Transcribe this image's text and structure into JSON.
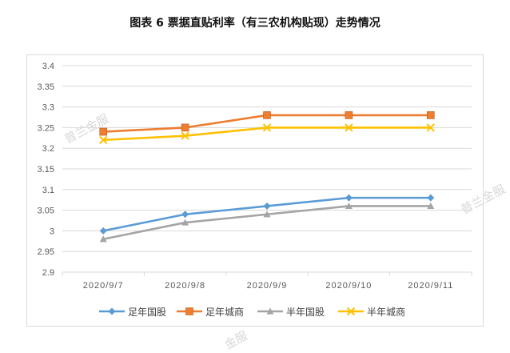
{
  "page": {
    "title": "图表 6  票据直贴利率（有三农机构贴现）走势情况"
  },
  "watermarks": {
    "w1": "普兰金服",
    "w2": "普兰金服",
    "w3": "金服"
  },
  "chart_data": {
    "type": "line",
    "title": "图表 6  票据直贴利率（有三农机构贴现）走势情况",
    "xlabel": "",
    "ylabel": "",
    "categories": [
      "2020/9/7",
      "2020/9/8",
      "2020/9/9",
      "2020/9/10",
      "2020/9/11"
    ],
    "ylim": [
      2.9,
      3.4
    ],
    "yticks": [
      "3.4",
      "3.35",
      "3.3",
      "3.25",
      "3.2",
      "3.15",
      "3.1",
      "3.05",
      "3",
      "2.95",
      "2.9"
    ],
    "grid": true,
    "legend_position": "bottom",
    "series": [
      {
        "name": "足年国股",
        "values": [
          3.0,
          3.04,
          3.06,
          3.08,
          3.08
        ],
        "color": "#5b9bd5",
        "marker": "diamond"
      },
      {
        "name": "足年城商",
        "values": [
          3.24,
          3.25,
          3.28,
          3.28,
          3.28
        ],
        "color": "#ed7d31",
        "marker": "square"
      },
      {
        "name": "半年国股",
        "values": [
          2.98,
          3.02,
          3.04,
          3.06,
          3.06
        ],
        "color": "#a5a5a5",
        "marker": "triangle"
      },
      {
        "name": "半年城商",
        "values": [
          3.22,
          3.23,
          3.25,
          3.25,
          3.25
        ],
        "color": "#ffc000",
        "marker": "x"
      }
    ]
  }
}
